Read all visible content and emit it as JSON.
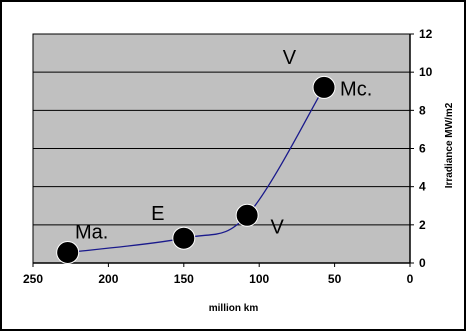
{
  "colors": {
    "plot_bg": "#c0c0c0",
    "line": "#1a1a8c",
    "marker": "#000000",
    "grid": "#000000"
  },
  "chart_data": {
    "type": "line",
    "title": "",
    "xlabel": "million km",
    "ylabel": "Irradiance MW/m2",
    "xlim": [
      250,
      0
    ],
    "ylim": [
      0,
      12
    ],
    "x_ticks": [
      250,
      200,
      150,
      100,
      50,
      0
    ],
    "y_ticks": [
      0,
      2,
      4,
      6,
      8,
      10,
      12
    ],
    "y_axis_side": "right",
    "grid": "horizontal",
    "legend": "none",
    "series": [
      {
        "points": [
          {
            "x": 227,
            "y": 0.55,
            "label": "Ma."
          },
          {
            "x": 150,
            "y": 1.3,
            "label": "E"
          },
          {
            "x": 108,
            "y": 2.5,
            "label": "V"
          },
          {
            "x": 57,
            "y": 9.2,
            "label": "Mc."
          }
        ]
      }
    ],
    "annotations": [
      {
        "text": "V",
        "x": 80,
        "y": 10.8
      }
    ]
  }
}
